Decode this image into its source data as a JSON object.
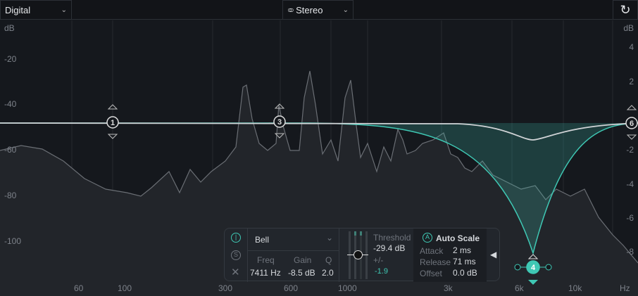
{
  "toolbar": {
    "mode": "Digital",
    "channel": "Stereo",
    "channel_icon": "stereo-rings-icon",
    "reset_icon": "reset-icon"
  },
  "axis": {
    "left_unit": "dB",
    "right_unit": "dB",
    "left_ticks": [
      "-20",
      "-40",
      "-60",
      "-80",
      "-100"
    ],
    "right_ticks": [
      "4",
      "2",
      "-2",
      "-4",
      "-6",
      "-8"
    ],
    "freq_ticks": [
      "60",
      "100",
      "300",
      "600",
      "1000",
      "3k",
      "6k",
      "10k"
    ],
    "freq_unit": "Hz"
  },
  "nodes": [
    {
      "id": "1"
    },
    {
      "id": "3"
    },
    {
      "id": "4"
    },
    {
      "id": "6"
    }
  ],
  "colors": {
    "accent": "#3fc8b4",
    "curve": "#d0d3d6",
    "spectrum": "#6a6e74"
  },
  "band": {
    "shape": "Bell",
    "freq_label": "Freq",
    "freq": "7411 Hz",
    "gain_label": "Gain",
    "gain": "-8.5 dB",
    "q_label": "Q",
    "q": "2.0",
    "solo": "S",
    "threshold_label": "Threshold",
    "threshold": "-29.4 dB",
    "range_label": "+/-",
    "range": "-1.9",
    "auto_icon": "A",
    "auto_scale": "Auto Scale",
    "attack_label": "Attack",
    "attack": "2 ms",
    "release_label": "Release",
    "release": "71 ms",
    "offset_label": "Offset",
    "offset": "0.0 dB"
  }
}
